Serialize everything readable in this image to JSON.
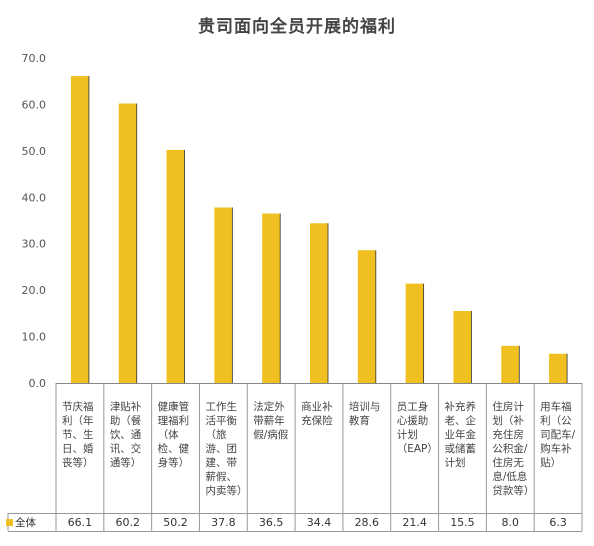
{
  "chart_data": {
    "type": "bar",
    "title": "贵司面向全员开展的福利",
    "categories": [
      "节庆福利（年节、生日、婚丧等）",
      "津贴补助（餐饮、通讯、交通等）",
      "健康管理福利（体检、健身等）",
      "工作生活平衡（旅游、团建、带薪假、内卖等）",
      "法定外带薪年假/病假",
      "商业补充保险",
      "培训与教育",
      "员工身心援助计划（EAP）",
      "补充养老、企业年金或储蓄计划",
      "住房计划（补充住房公积金/住房无息/低息贷款等）",
      "用车福利（公司配车/购车补贴）"
    ],
    "series": [
      {
        "name": "全体",
        "values": [
          66.1,
          60.2,
          50.2,
          37.8,
          36.5,
          34.4,
          28.6,
          21.4,
          15.5,
          8.0,
          6.3
        ]
      }
    ],
    "value_labels": [
      "66.1",
      "60.2",
      "50.2",
      "37.8",
      "36.5",
      "34.4",
      "28.6",
      "21.4",
      "15.5",
      "8.0",
      "6.3"
    ],
    "ylim": [
      0,
      70
    ],
    "yticks": [
      "0.0",
      "10.0",
      "20.0",
      "30.0",
      "40.0",
      "50.0",
      "60.0",
      "70.0"
    ],
    "grid": false,
    "legend_position": "bottom-left",
    "colors": {
      "bar": "#F0C020",
      "bar_edge": "#333333",
      "axis": "#888888",
      "table_line": "#999999"
    }
  }
}
